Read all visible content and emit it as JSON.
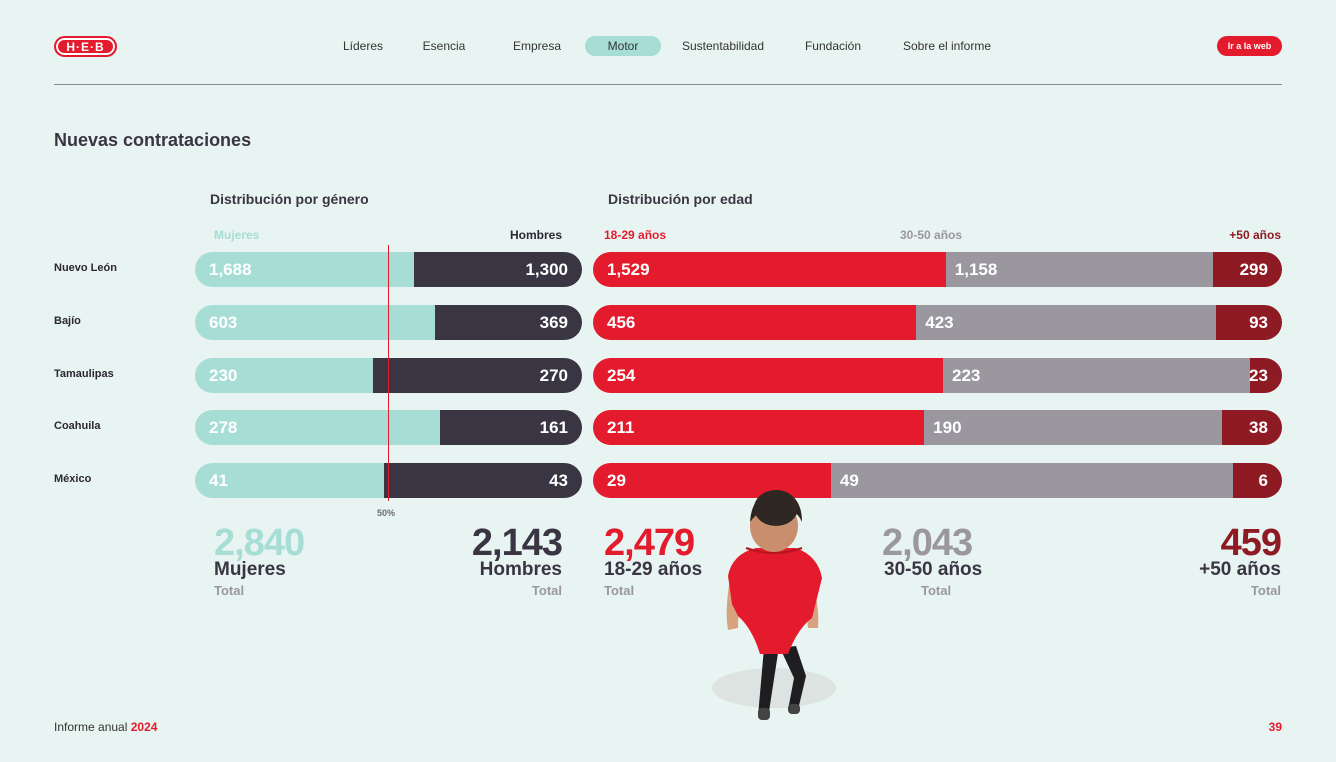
{
  "header": {
    "logo_text": "H·E·B",
    "nav": [
      {
        "label": "Líderes",
        "active": false
      },
      {
        "label": "Esencia",
        "active": false
      },
      {
        "label": "Empresa",
        "active": false
      },
      {
        "label": "Motor",
        "active": true
      },
      {
        "label": "Sustentabilidad",
        "active": false
      },
      {
        "label": "Fundación",
        "active": false
      },
      {
        "label": "Sobre el informe",
        "active": false
      }
    ],
    "web_button": "Ir a la web"
  },
  "page_title": "Nuevas contrataciones",
  "colors": {
    "mujeres": "#a6ddd5",
    "hombres": "#3a3543",
    "age_18_29": "#e31b2d",
    "age_30_50": "#9a979f",
    "age_50_plus": "#8e1a23",
    "midline": "#e31b2d"
  },
  "chart_data": [
    {
      "type": "bar",
      "stacked": "percent",
      "orientation": "horizontal",
      "title": "Distribución por género",
      "categories": [
        "Nuevo León",
        "Bajío",
        "Tamaulipas",
        "Coahuila",
        "México"
      ],
      "series": [
        {
          "name": "Mujeres",
          "values": [
            1688,
            603,
            230,
            278,
            41
          ]
        },
        {
          "name": "Hombres",
          "values": [
            1300,
            369,
            270,
            161,
            43
          ]
        }
      ],
      "reference_line": {
        "value_percent": 50,
        "label": "50%"
      },
      "totals": [
        {
          "value": "2,840",
          "label": "Mujeres",
          "sub": "Total"
        },
        {
          "value": "2,143",
          "label": "Hombres",
          "sub": "Total"
        }
      ]
    },
    {
      "type": "bar",
      "stacked": "percent",
      "orientation": "horizontal",
      "title": "Distribución por edad",
      "categories": [
        "Nuevo León",
        "Bajío",
        "Tamaulipas",
        "Coahuila",
        "México"
      ],
      "series": [
        {
          "name": "18-29 años",
          "values": [
            1529,
            456,
            254,
            211,
            29
          ]
        },
        {
          "name": "30-50 años",
          "values": [
            1158,
            423,
            223,
            190,
            49
          ]
        },
        {
          "name": "+50 años",
          "values": [
            299,
            93,
            23,
            38,
            6
          ]
        }
      ],
      "totals": [
        {
          "value": "2,479",
          "label": "18-29 años",
          "sub": "Total"
        },
        {
          "value": "2,043",
          "label": "30-50 años",
          "sub": "Total"
        },
        {
          "value": "459",
          "label": "+50 años",
          "sub": "Total"
        }
      ]
    }
  ],
  "footer": {
    "report_label": "Informe anual",
    "year": "2024",
    "page_number": "39"
  }
}
